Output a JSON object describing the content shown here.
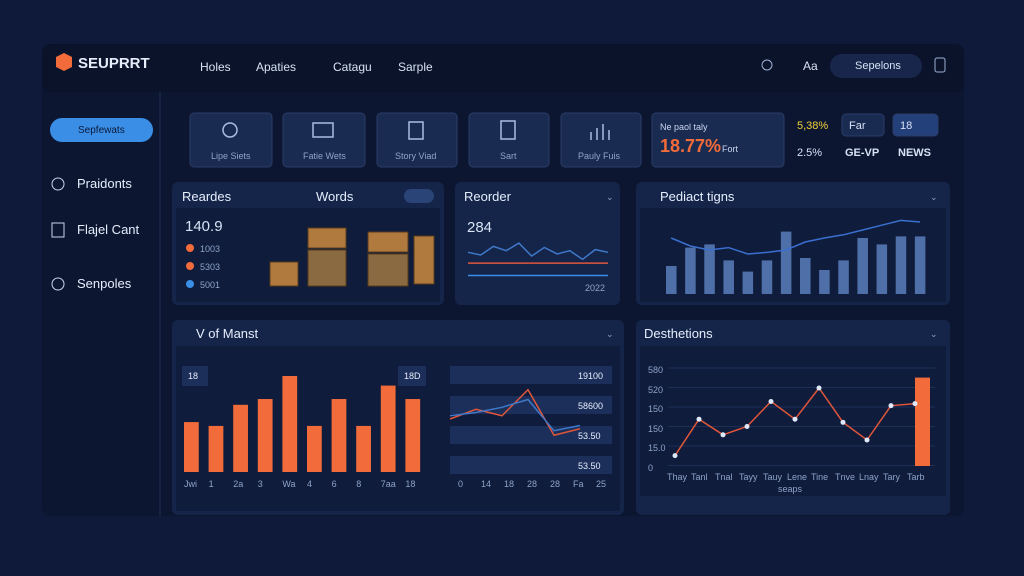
{
  "header": {
    "brand": "SEUPRRT",
    "nav": [
      "Holes",
      "Apaties",
      "Catagu",
      "Sarple"
    ],
    "font_label": "Aa",
    "search": "Sepelons"
  },
  "sidebar": {
    "search": "Sepfewats",
    "items": [
      "Praidonts",
      "Flajel Cant",
      "Senpoles"
    ]
  },
  "tiles": [
    "Lipe Siets",
    "Fatie Wets",
    "Story Viad",
    "Sart",
    "Pauly Fuis"
  ],
  "stats": {
    "caption": "Ne paol taly",
    "main": "18.77%",
    "main_suffix": "Fort",
    "row1": [
      "5,38%",
      "Far",
      "18"
    ],
    "row2": [
      "2.5%",
      "GE-VP",
      "NEWS"
    ]
  },
  "reorders": {
    "title": "Reardes",
    "subtitle": "Words",
    "value": "140.9",
    "legend": [
      {
        "label": "1003",
        "color": "#f26b3a"
      },
      {
        "label": "5303",
        "color": "#f26b3a"
      },
      {
        "label": "5001",
        "color": "#3a8ee6"
      }
    ]
  },
  "reorder": {
    "title": "Reorder",
    "value": "284",
    "note": "2022",
    "ylim": [
      0,
      100
    ],
    "series": [
      {
        "color": "#3f78c8",
        "values": [
          55,
          50,
          66,
          58,
          72,
          48,
          64,
          52,
          58,
          42,
          60,
          55
        ]
      },
      {
        "color": "#e0563a",
        "values": [
          35,
          35
        ]
      },
      {
        "color": "#3a8ee6",
        "values": [
          12,
          12
        ]
      }
    ]
  },
  "product": {
    "title": "Pediact tigns",
    "ylim": [
      0,
      100
    ],
    "bar_color": "#4f6fa8",
    "line_color": "#3a6fd0",
    "bars": [
      35,
      58,
      62,
      42,
      28,
      42,
      78,
      45,
      30,
      42,
      70,
      62,
      72,
      72
    ],
    "line": [
      70,
      60,
      55,
      58,
      50,
      52,
      55,
      65,
      70,
      74,
      80,
      86,
      92,
      90
    ]
  },
  "manst": {
    "title": "V of Manst",
    "badge_left": "18",
    "badge_right": "18D",
    "ylim": [
      0,
      100
    ],
    "color": "#f26b3a",
    "categories": [
      "Jwi",
      "1",
      "2a",
      "3",
      "Wa",
      "4",
      "6",
      "8",
      "7aa",
      "18"
    ],
    "values": [
      52,
      48,
      70,
      76,
      100,
      48,
      76,
      48,
      90,
      76
    ],
    "rows": [
      "19100",
      "58600",
      "53.50",
      "53.50"
    ],
    "axis_labels": [
      "0",
      "14",
      "18",
      "28",
      "28",
      "Fa",
      "25"
    ],
    "lines": [
      {
        "color": "#e0563a",
        "values": [
          40,
          55,
          45,
          85,
          15,
          25
        ]
      },
      {
        "color": "#3f78c8",
        "values": [
          45,
          50,
          58,
          70,
          22,
          30
        ]
      }
    ]
  },
  "destinations": {
    "title": "Desthetions",
    "ylim": [
      0,
      100
    ],
    "line_color": "#e0563a",
    "bar_color": "#f26b3a",
    "y_labels": [
      "580",
      "520",
      "150",
      "150",
      "15.0",
      "0"
    ],
    "categories": [
      "Thay",
      "Tanl",
      "Tnal",
      "Tayy",
      "Tauy",
      "Lene",
      "Tine",
      "Tnve",
      "Lnay",
      "Tary",
      "Tarb"
    ],
    "values": [
      10,
      45,
      30,
      38,
      62,
      45,
      75,
      42,
      25,
      58,
      60
    ],
    "bar": 85,
    "footer": "seaps"
  }
}
